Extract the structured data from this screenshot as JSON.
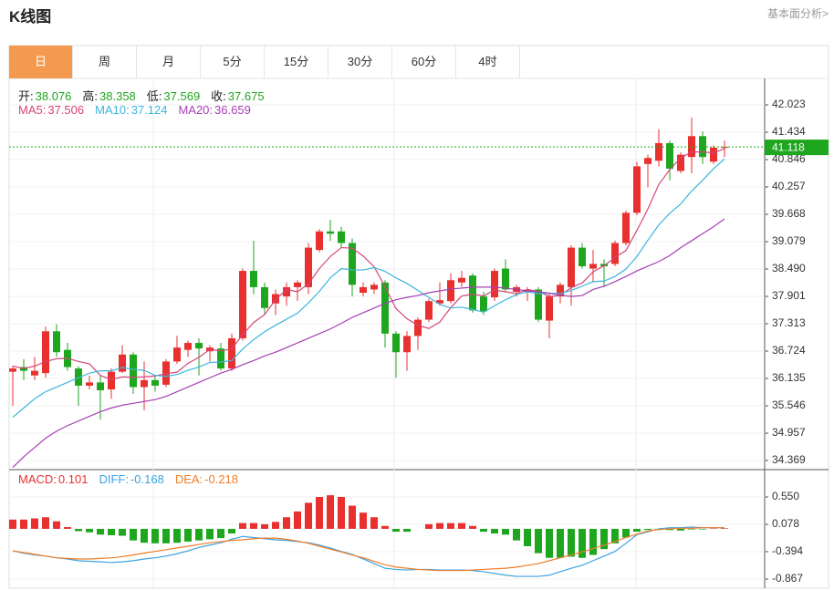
{
  "header": {
    "title": "K线图",
    "link": "基本面分析>"
  },
  "tabs": {
    "items": [
      "日",
      "周",
      "月",
      "5分",
      "15分",
      "30分",
      "60分",
      "4时"
    ],
    "active": 0
  },
  "chart_data": [
    {
      "type": "candlestick",
      "up_color": "#e8312f",
      "down_color": "#1fa61f",
      "info": [
        {
          "label": "开:",
          "value": 38.076
        },
        {
          "label": "高:",
          "value": 38.358
        },
        {
          "label": "低:",
          "value": 37.569
        },
        {
          "label": "收:",
          "value": 37.675
        }
      ],
      "open": [
        36.28,
        36.38,
        36.2,
        36.25,
        37.15,
        36.75,
        36.35,
        35.98,
        36.05,
        35.9,
        36.28,
        36.65,
        35.95,
        36.1,
        36.0,
        36.5,
        36.75,
        36.9,
        36.72,
        36.78,
        36.35,
        37.0,
        38.45,
        38.1,
        37.75,
        37.9,
        38.1,
        38.1,
        38.9,
        39.3,
        39.3,
        39.05,
        37.98,
        38.05,
        38.2,
        37.1,
        36.7,
        37.05,
        37.4,
        37.75,
        37.8,
        38.2,
        38.35,
        37.9,
        37.88,
        38.5,
        38.0,
        38.0,
        38.05,
        37.38,
        37.9,
        38.1,
        38.95,
        38.5,
        38.6,
        38.6,
        39.05,
        39.7,
        40.75,
        40.82,
        41.2,
        40.6,
        40.9,
        41.35,
        40.8,
        41.1
      ],
      "high": [
        36.4,
        36.55,
        36.6,
        37.25,
        37.3,
        36.9,
        36.4,
        36.2,
        36.2,
        36.35,
        36.85,
        36.7,
        36.5,
        36.2,
        36.55,
        37.05,
        36.95,
        37.0,
        36.85,
        36.9,
        37.1,
        38.5,
        39.1,
        38.2,
        38.05,
        38.2,
        38.25,
        39.05,
        39.35,
        39.55,
        39.4,
        39.15,
        38.2,
        38.2,
        38.25,
        37.15,
        37.15,
        37.45,
        37.85,
        38.2,
        38.4,
        38.45,
        38.4,
        38.0,
        38.5,
        38.7,
        38.15,
        38.1,
        38.1,
        37.95,
        38.2,
        39.0,
        39.05,
        38.9,
        38.7,
        39.1,
        39.75,
        40.8,
        40.95,
        41.5,
        41.25,
        41.0,
        41.75,
        41.45,
        41.15,
        41.25
      ],
      "low": [
        35.55,
        36.1,
        36.1,
        36.15,
        36.6,
        36.3,
        35.55,
        35.9,
        35.25,
        35.7,
        36.25,
        35.8,
        35.45,
        35.85,
        35.95,
        36.45,
        36.6,
        36.2,
        36.5,
        36.3,
        36.3,
        36.95,
        37.95,
        37.5,
        37.5,
        37.7,
        37.8,
        37.95,
        38.85,
        39.1,
        38.95,
        37.9,
        37.9,
        37.95,
        36.8,
        36.15,
        36.3,
        36.75,
        37.35,
        37.7,
        37.75,
        38.1,
        37.55,
        37.5,
        37.8,
        38.0,
        37.9,
        37.8,
        37.35,
        37.0,
        37.75,
        37.7,
        38.5,
        38.2,
        38.1,
        38.55,
        39.0,
        39.65,
        40.25,
        40.7,
        40.4,
        40.55,
        40.55,
        40.75,
        40.75,
        40.9
      ],
      "close": [
        36.35,
        36.3,
        36.3,
        37.15,
        36.7,
        36.38,
        35.98,
        36.05,
        35.88,
        36.28,
        36.65,
        35.95,
        36.1,
        35.98,
        36.5,
        36.8,
        36.9,
        36.78,
        36.8,
        36.35,
        37.0,
        38.45,
        38.1,
        37.65,
        37.95,
        38.1,
        38.2,
        38.95,
        39.3,
        39.25,
        39.05,
        38.15,
        38.1,
        38.15,
        37.1,
        36.7,
        37.05,
        37.4,
        37.8,
        37.82,
        38.25,
        38.3,
        37.6,
        37.58,
        38.45,
        38.05,
        38.1,
        38.05,
        37.4,
        37.9,
        38.15,
        38.95,
        38.55,
        38.6,
        38.55,
        39.05,
        39.7,
        40.7,
        40.88,
        41.2,
        40.65,
        40.95,
        41.35,
        40.9,
        41.1,
        41.118
      ],
      "series": [
        {
          "name": "MA5:",
          "readout": 37.506,
          "color": "#d6457a",
          "values": [
            36.4,
            36.35,
            36.4,
            36.5,
            36.56,
            36.57,
            36.5,
            36.45,
            36.2,
            36.11,
            36.17,
            36.16,
            36.17,
            36.19,
            36.24,
            36.27,
            36.46,
            36.59,
            36.76,
            36.73,
            36.77,
            37.08,
            37.34,
            37.51,
            37.83,
            38.05,
            38.0,
            38.17,
            38.5,
            38.76,
            38.95,
            38.94,
            38.77,
            38.54,
            38.11,
            37.64,
            37.42,
            37.28,
            37.21,
            37.35,
            37.66,
            37.91,
            37.95,
            37.91,
            38.04,
            38.0,
            37.96,
            38.05,
            38.01,
            37.9,
            37.92,
            38.09,
            38.19,
            38.43,
            38.56,
            38.74,
            38.89,
            39.32,
            39.78,
            40.31,
            40.63,
            40.88,
            41.01,
            41.01,
            40.99,
            41.08
          ]
        },
        {
          "name": "MA10:",
          "readout": 37.124,
          "color": "#3cb6dd",
          "values": [
            35.3,
            35.5,
            35.7,
            35.85,
            35.95,
            36.05,
            36.15,
            36.25,
            36.3,
            36.3,
            36.37,
            36.33,
            36.31,
            36.2,
            36.18,
            36.22,
            36.31,
            36.38,
            36.48,
            36.49,
            36.52,
            36.77,
            36.97,
            37.14,
            37.28,
            37.41,
            37.54,
            37.76,
            38.01,
            38.3,
            38.5,
            38.47,
            38.47,
            38.52,
            38.44,
            38.3,
            38.18,
            38.03,
            37.88,
            37.73,
            37.65,
            37.67,
            37.62,
            37.56,
            37.7,
            37.83,
            37.94,
            38.0,
            37.96,
            37.97,
            37.96,
            38.03,
            38.12,
            38.22,
            38.23,
            38.33,
            38.49,
            38.76,
            39.11,
            39.44,
            39.69,
            39.89,
            40.17,
            40.4,
            40.65,
            40.86
          ]
        },
        {
          "name": "MA20:",
          "readout": 36.659,
          "color": "#a640b4",
          "values": [
            34.22,
            34.45,
            34.65,
            34.85,
            35.0,
            35.12,
            35.22,
            35.32,
            35.42,
            35.5,
            35.56,
            35.6,
            35.64,
            35.68,
            35.75,
            35.85,
            35.95,
            36.05,
            36.15,
            36.25,
            36.33,
            36.43,
            36.52,
            36.62,
            36.7,
            36.8,
            36.9,
            37.0,
            37.1,
            37.2,
            37.32,
            37.45,
            37.55,
            37.65,
            37.75,
            37.83,
            37.88,
            37.92,
            37.98,
            38.02,
            38.06,
            38.08,
            38.1,
            38.1,
            38.1,
            38.08,
            38.05,
            38.02,
            38.0,
            37.97,
            37.93,
            37.9,
            37.92,
            38.05,
            38.12,
            38.22,
            38.33,
            38.45,
            38.55,
            38.65,
            38.78,
            38.95,
            39.1,
            39.25,
            39.4,
            39.57
          ]
        }
      ],
      "last_price": 41.118,
      "ylim": [
        34.173,
        42.592
      ],
      "yticks": [
        {
          "value": 42.023,
          "label": "42.023"
        },
        41.434,
        40.846,
        40.257,
        39.668,
        39.079,
        {
          "value": 38.49,
          "label": "38.490"
        },
        37.901,
        37.313,
        36.724,
        36.135,
        35.546,
        34.957,
        34.369
      ],
      "grid": true
    },
    {
      "type": "macd",
      "histogram": {
        "name": "MACD:",
        "readout": 0.101,
        "color": "#e8312f",
        "pos_color": "#e8312f",
        "neg_color": "#1fa61f",
        "values": [
          0.16,
          0.16,
          0.18,
          0.2,
          0.13,
          0.03,
          -0.04,
          -0.06,
          -0.1,
          -0.11,
          -0.12,
          -0.2,
          -0.24,
          -0.25,
          -0.25,
          -0.24,
          -0.22,
          -0.2,
          -0.18,
          -0.16,
          -0.08,
          0.1,
          0.1,
          0.08,
          0.12,
          0.2,
          0.3,
          0.45,
          0.55,
          0.58,
          0.55,
          0.4,
          0.28,
          0.2,
          0.05,
          -0.05,
          -0.05,
          0.0,
          0.08,
          0.1,
          0.1,
          0.1,
          0.05,
          -0.05,
          -0.08,
          -0.1,
          -0.2,
          -0.3,
          -0.42,
          -0.5,
          -0.5,
          -0.48,
          -0.5,
          -0.45,
          -0.35,
          -0.25,
          -0.15,
          -0.05,
          -0.02,
          -0.02,
          -0.02,
          -0.03,
          -0.01,
          -0.01,
          0.005,
          0.01
        ]
      },
      "series": [
        {
          "name": "DIFF:",
          "readout": -0.168,
          "color": "#3ba3e0",
          "values": [
            -0.38,
            -0.42,
            -0.45,
            -0.47,
            -0.5,
            -0.52,
            -0.55,
            -0.56,
            -0.57,
            -0.58,
            -0.57,
            -0.55,
            -0.52,
            -0.5,
            -0.47,
            -0.43,
            -0.38,
            -0.32,
            -0.28,
            -0.24,
            -0.18,
            -0.13,
            -0.15,
            -0.17,
            -0.19,
            -0.2,
            -0.22,
            -0.24,
            -0.28,
            -0.33,
            -0.39,
            -0.44,
            -0.52,
            -0.6,
            -0.68,
            -0.7,
            -0.71,
            -0.7,
            -0.7,
            -0.71,
            -0.71,
            -0.71,
            -0.72,
            -0.74,
            -0.77,
            -0.8,
            -0.82,
            -0.82,
            -0.82,
            -0.8,
            -0.74,
            -0.68,
            -0.63,
            -0.55,
            -0.47,
            -0.39,
            -0.25,
            -0.1,
            -0.05,
            0.0,
            0.02,
            0.02,
            0.03,
            0.02,
            0.02,
            0.02
          ]
        },
        {
          "name": "DEA:",
          "readout": -0.218,
          "color": "#f07d2a",
          "values": [
            -0.38,
            -0.41,
            -0.44,
            -0.47,
            -0.5,
            -0.51,
            -0.52,
            -0.52,
            -0.51,
            -0.5,
            -0.48,
            -0.45,
            -0.42,
            -0.39,
            -0.36,
            -0.33,
            -0.3,
            -0.27,
            -0.24,
            -0.22,
            -0.2,
            -0.19,
            -0.17,
            -0.16,
            -0.16,
            -0.18,
            -0.21,
            -0.25,
            -0.3,
            -0.35,
            -0.4,
            -0.45,
            -0.5,
            -0.56,
            -0.62,
            -0.66,
            -0.68,
            -0.7,
            -0.71,
            -0.72,
            -0.72,
            -0.72,
            -0.71,
            -0.7,
            -0.69,
            -0.68,
            -0.66,
            -0.63,
            -0.6,
            -0.55,
            -0.5,
            -0.45,
            -0.4,
            -0.34,
            -0.28,
            -0.22,
            -0.15,
            -0.09,
            -0.04,
            -0.01,
            0.0,
            0.01,
            0.01,
            0.02,
            0.02,
            0.02
          ]
        }
      ],
      "ylim": [
        -1.024,
        1.022
      ],
      "yticks": [
        {
          "value": 0.55,
          "label": "0.550"
        },
        0.078,
        -0.394,
        -0.867
      ],
      "grid": true
    }
  ]
}
